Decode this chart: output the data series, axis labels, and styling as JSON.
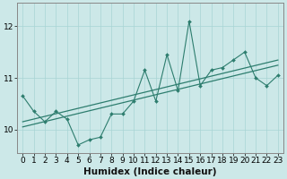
{
  "title": "",
  "xlabel": "Humidex (Indice chaleur)",
  "ylabel": "",
  "bg_color": "#cce8e8",
  "plot_bg_color": "#cce8e8",
  "line_color": "#2d7d6e",
  "x_values": [
    0,
    1,
    2,
    3,
    4,
    5,
    6,
    7,
    8,
    9,
    10,
    11,
    12,
    13,
    14,
    15,
    16,
    17,
    18,
    19,
    20,
    21,
    22,
    23
  ],
  "y_values": [
    10.65,
    10.35,
    10.15,
    10.35,
    10.2,
    9.7,
    9.8,
    9.85,
    10.3,
    10.3,
    10.55,
    11.15,
    10.55,
    11.45,
    10.75,
    12.1,
    10.85,
    11.15,
    11.2,
    11.35,
    11.5,
    11.0,
    10.85,
    11.05
  ],
  "trend1_intercept": 10.15,
  "trend1_slope": 0.052,
  "trend2_intercept": 10.05,
  "trend2_slope": 0.052,
  "ylim": [
    9.55,
    12.45
  ],
  "xlim": [
    -0.5,
    23.5
  ],
  "yticks": [
    10,
    11,
    12
  ],
  "xticks": [
    0,
    1,
    2,
    3,
    4,
    5,
    6,
    7,
    8,
    9,
    10,
    11,
    12,
    13,
    14,
    15,
    16,
    17,
    18,
    19,
    20,
    21,
    22,
    23
  ],
  "tick_fontsize": 6.5,
  "xlabel_fontsize": 7.5,
  "grid_color": "#a8d4d4",
  "spine_color": "#888888"
}
